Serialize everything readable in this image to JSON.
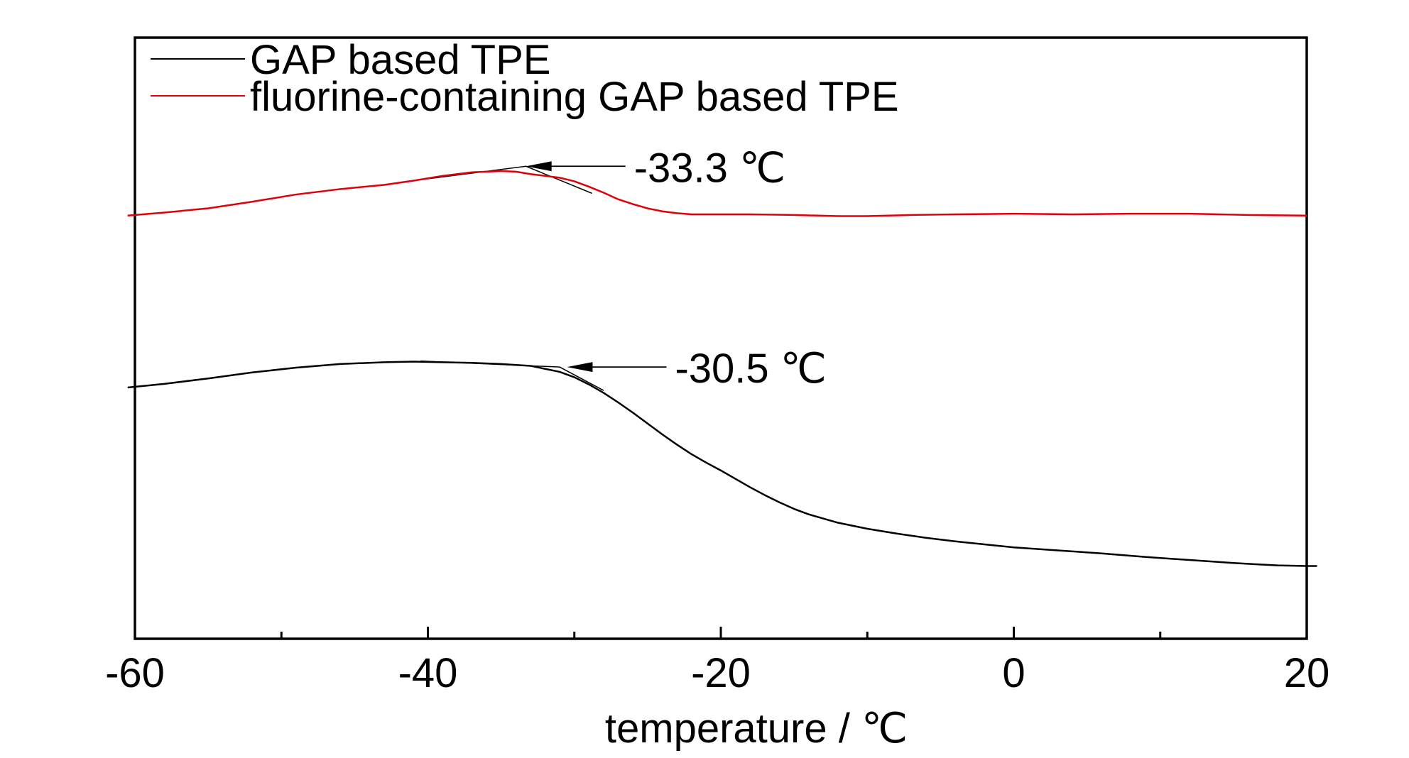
{
  "chart_data": {
    "type": "line",
    "title": "",
    "xlabel": "temperature / ℃",
    "ylabel": "",
    "xlim": [
      -60,
      20
    ],
    "ylim": [
      0,
      1
    ],
    "x_ticks": [
      "-60",
      "-40",
      "-20",
      "0",
      "20"
    ],
    "y_ticks_visible": false,
    "grid": false,
    "legend_position": "top-left",
    "series": [
      {
        "name": "GAP based TPE",
        "color": "#000000",
        "x": [
          -60.5,
          -58,
          -55,
          -52,
          -49,
          -46,
          -43,
          -41,
          -39,
          -37,
          -35,
          -33,
          -31,
          -30,
          -29,
          -28,
          -27,
          -26,
          -25,
          -24,
          -23,
          -22,
          -21,
          -20,
          -19,
          -18,
          -17,
          -16,
          -15,
          -14,
          -12,
          -10,
          -8,
          -6,
          -4,
          -2,
          0,
          3,
          6,
          9,
          12,
          15,
          18,
          20,
          20.7
        ],
        "y": [
          0.418,
          0.424,
          0.433,
          0.443,
          0.451,
          0.457,
          0.46,
          0.461,
          0.46,
          0.459,
          0.457,
          0.454,
          0.444,
          0.435,
          0.423,
          0.409,
          0.393,
          0.376,
          0.358,
          0.34,
          0.323,
          0.307,
          0.293,
          0.28,
          0.266,
          0.252,
          0.239,
          0.227,
          0.216,
          0.207,
          0.193,
          0.183,
          0.175,
          0.168,
          0.162,
          0.157,
          0.152,
          0.147,
          0.142,
          0.136,
          0.131,
          0.126,
          0.122,
          0.121,
          0.121
        ]
      },
      {
        "name": "fluorine-containing GAP based TPE",
        "color": "#e0000b",
        "x": [
          -60.5,
          -58,
          -55,
          -52,
          -49,
          -46,
          -43,
          -41,
          -39,
          -37,
          -35,
          -34,
          -33,
          -32,
          -31,
          -30,
          -29,
          -28,
          -27,
          -26,
          -25,
          -24,
          -23,
          -22,
          -21,
          -20,
          -18,
          -15,
          -12,
          -10,
          -7,
          -4,
          0,
          4,
          8,
          12,
          16,
          20
        ],
        "y": [
          0.704,
          0.709,
          0.716,
          0.727,
          0.739,
          0.748,
          0.755,
          0.762,
          0.77,
          0.776,
          0.778,
          0.777,
          0.773,
          0.77,
          0.767,
          0.761,
          0.752,
          0.742,
          0.731,
          0.723,
          0.716,
          0.711,
          0.708,
          0.706,
          0.706,
          0.706,
          0.706,
          0.705,
          0.703,
          0.703,
          0.705,
          0.706,
          0.707,
          0.706,
          0.707,
          0.707,
          0.705,
          0.704
        ]
      }
    ],
    "tangent_lines": [
      {
        "color": "#000000",
        "x": [
          -40.5,
          -31,
          -28
        ],
        "y": [
          0.462,
          0.452,
          0.413
        ]
      },
      {
        "color": "#000000",
        "x": [
          -41,
          -33.3,
          -28.8
        ],
        "y": [
          0.762,
          0.786,
          0.741
        ]
      }
    ],
    "annotations": [
      {
        "text": "-33.3 ℃",
        "value": -33.3,
        "series": "fluorine-containing GAP based TPE"
      },
      {
        "text": "-30.5 ℃",
        "value": -30.5,
        "series": "GAP based TPE"
      }
    ]
  }
}
